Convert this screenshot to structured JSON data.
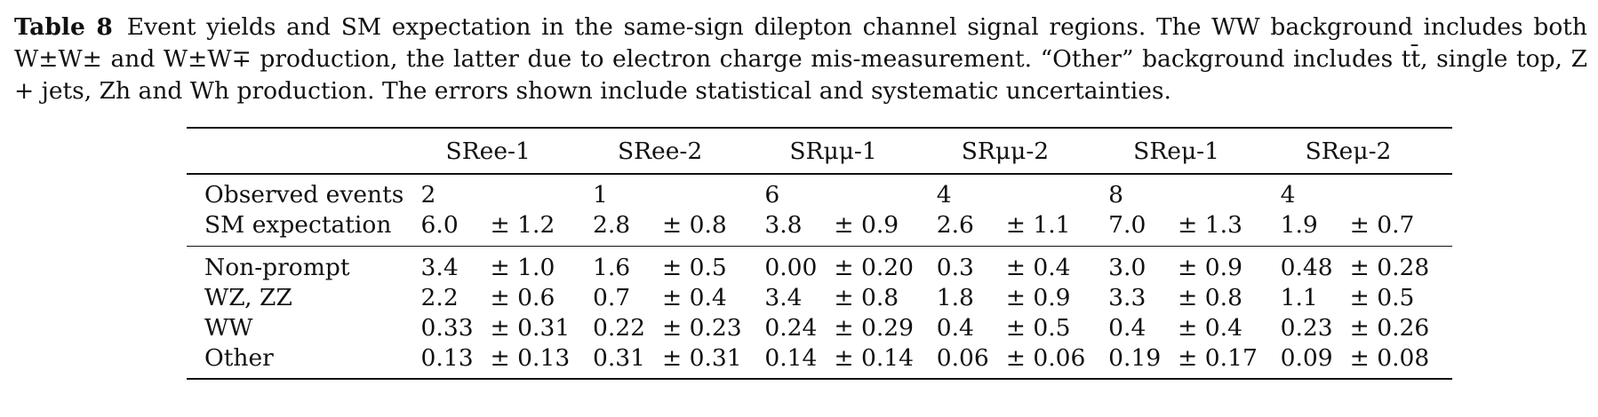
{
  "caption": {
    "label": "Table 8",
    "text": "Event yields and SM expectation in the same-sign dilepton channel signal regions. The WW background includes both W±W± and W±W∓ production, the latter due to electron charge mis-measurement. “Other” background includes tt̄, single top, Z + jets, Zh and Wh production. The errors shown include statistical and systematic uncertainties."
  },
  "table": {
    "columns": [
      "SRee-1",
      "SRee-2",
      "SRμμ-1",
      "SRμμ-2",
      "SReμ-1",
      "SReμ-2"
    ],
    "observed": {
      "label": "Observed events",
      "values": [
        "2",
        "1",
        "6",
        "4",
        "8",
        "4"
      ]
    },
    "sm": {
      "label": "SM expectation",
      "values": [
        {
          "v": "6.0",
          "e": "± 1.2"
        },
        {
          "v": "2.8",
          "e": "± 0.8"
        },
        {
          "v": "3.8",
          "e": "± 0.9"
        },
        {
          "v": "2.6",
          "e": "± 1.1"
        },
        {
          "v": "7.0",
          "e": "± 1.3"
        },
        {
          "v": "1.9",
          "e": "± 0.7"
        }
      ]
    },
    "backgrounds": [
      {
        "label": "Non-prompt",
        "values": [
          {
            "v": "3.4",
            "e": "± 1.0"
          },
          {
            "v": "1.6",
            "e": "± 0.5"
          },
          {
            "v": "0.00",
            "e": "± 0.20"
          },
          {
            "v": "0.3",
            "e": "± 0.4"
          },
          {
            "v": "3.0",
            "e": "± 0.9"
          },
          {
            "v": "0.48",
            "e": "± 0.28"
          }
        ]
      },
      {
        "label": "WZ, ZZ",
        "values": [
          {
            "v": "2.2",
            "e": "± 0.6"
          },
          {
            "v": "0.7",
            "e": "± 0.4"
          },
          {
            "v": "3.4",
            "e": "± 0.8"
          },
          {
            "v": "1.8",
            "e": "± 0.9"
          },
          {
            "v": "3.3",
            "e": "± 0.8"
          },
          {
            "v": "1.1",
            "e": "± 0.5"
          }
        ]
      },
      {
        "label": "WW",
        "values": [
          {
            "v": "0.33",
            "e": "± 0.31"
          },
          {
            "v": "0.22",
            "e": "± 0.23"
          },
          {
            "v": "0.24",
            "e": "± 0.29"
          },
          {
            "v": "0.4",
            "e": "± 0.5"
          },
          {
            "v": "0.4",
            "e": "± 0.4"
          },
          {
            "v": "0.23",
            "e": "± 0.26"
          }
        ]
      },
      {
        "label": "Other",
        "values": [
          {
            "v": "0.13",
            "e": "± 0.13"
          },
          {
            "v": "0.31",
            "e": "± 0.31"
          },
          {
            "v": "0.14",
            "e": "± 0.14"
          },
          {
            "v": "0.06",
            "e": "± 0.06"
          },
          {
            "v": "0.19",
            "e": "± 0.17"
          },
          {
            "v": "0.09",
            "e": "± 0.08"
          }
        ]
      }
    ]
  }
}
